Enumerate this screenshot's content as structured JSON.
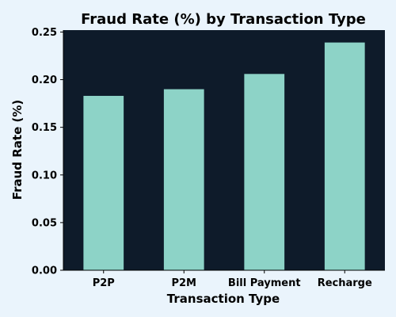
{
  "colors": {
    "page_background": "#eaf4fc",
    "plot_background": "#0e1b2a",
    "bar": "#8dd3c7"
  },
  "chart_data": {
    "type": "bar",
    "title": "Fraud Rate (%) by Transaction Type",
    "xlabel": "Transaction Type",
    "ylabel": "Fraud Rate (%)",
    "categories": [
      "P2P",
      "P2M",
      "Bill Payment",
      "Recharge"
    ],
    "values": [
      0.183,
      0.19,
      0.206,
      0.239
    ],
    "ylim": [
      0,
      0.252
    ],
    "yticks": [
      "0.00",
      "0.05",
      "0.10",
      "0.15",
      "0.20",
      "0.25"
    ],
    "grid": false,
    "legend": "none"
  }
}
